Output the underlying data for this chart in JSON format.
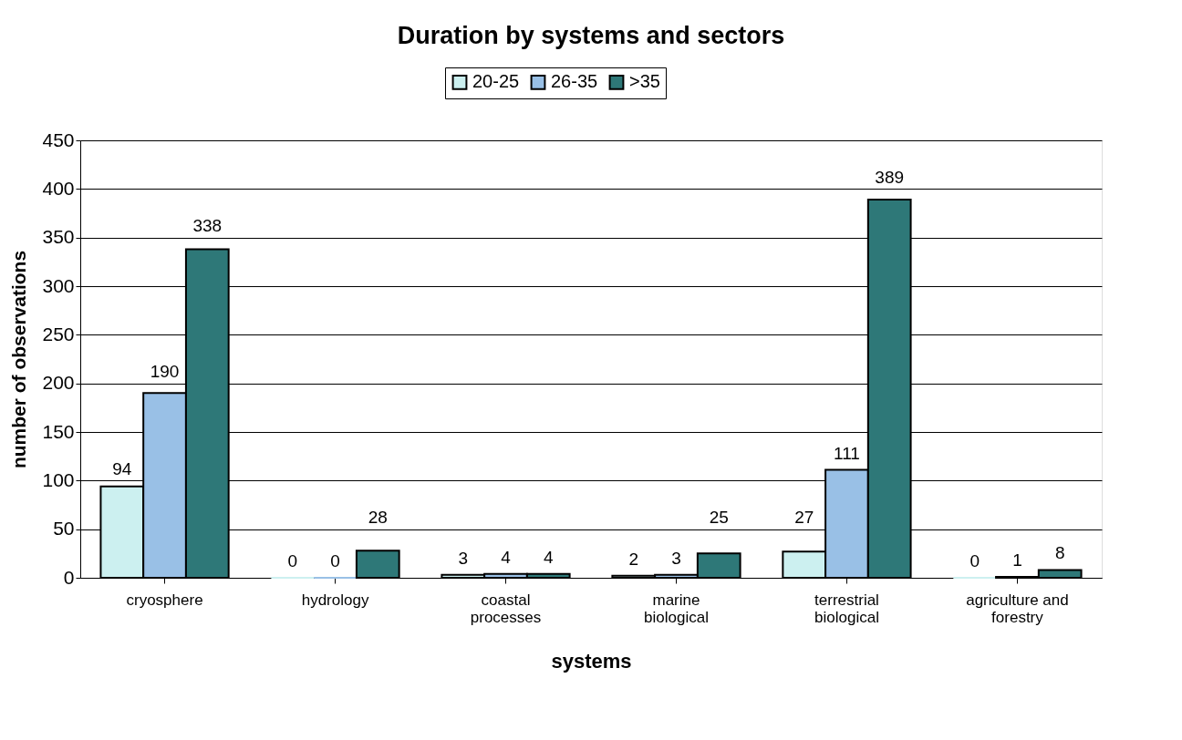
{
  "chart_data": {
    "type": "bar",
    "title": "Duration by systems and sectors",
    "xlabel": "systems",
    "ylabel": "number of observations",
    "categories": [
      "cryosphere",
      "hydrology",
      "coastal\nprocesses",
      "marine\nbiological",
      "terrestrial\nbiological",
      "agriculture and\nforestry"
    ],
    "series": [
      {
        "name": "20-25",
        "color": "#ccf0f0",
        "values": [
          94,
          0,
          3,
          2,
          27,
          0
        ]
      },
      {
        "name": "26-35",
        "color": "#99c0e6",
        "values": [
          190,
          0,
          4,
          3,
          111,
          1
        ]
      },
      {
        "name": ">35",
        "color": "#2e7878",
        "values": [
          338,
          28,
          4,
          25,
          389,
          8
        ]
      }
    ],
    "ylim": [
      0,
      450
    ],
    "yticks": [
      0,
      50,
      100,
      150,
      200,
      250,
      300,
      350,
      400,
      450
    ],
    "grid": "y",
    "legend": "top",
    "data_labels": true
  }
}
